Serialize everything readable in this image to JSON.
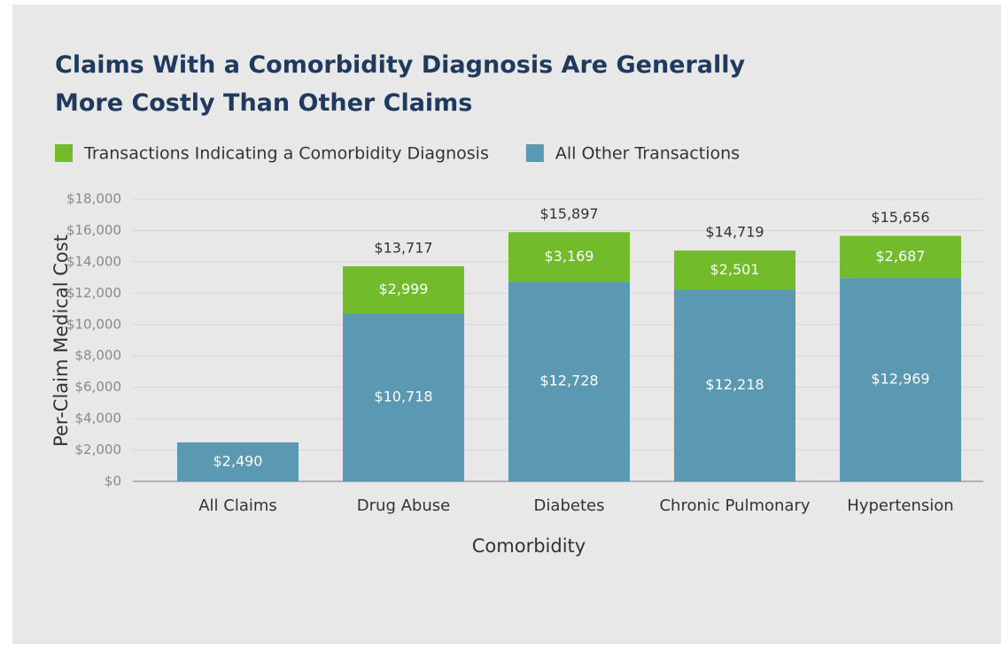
{
  "chart_data": {
    "type": "stacked_bar",
    "title": "Claims With a Comorbidity Diagnosis Are Generally More Costly Than Other Claims",
    "x_label": "Comorbidity",
    "y_label": "Per-Claim Medical Cost",
    "categories": [
      "All Claims",
      "Drug Abuse",
      "Diabetes",
      "Chronic Pulmonary",
      "Hypertension"
    ],
    "series": [
      {
        "name": "Transactions Indicating a Comorbidity Diagnosis",
        "color": "#72bb2b",
        "values": [
          null,
          2999,
          3169,
          2501,
          2687
        ],
        "value_labels": [
          null,
          "$2,999",
          "$3,169",
          "$2,501",
          "$2,687"
        ]
      },
      {
        "name": "All Other Transactions",
        "color": "#5b98b1",
        "values": [
          2490,
          10718,
          12728,
          12218,
          12969
        ],
        "value_labels": [
          "$2,490",
          "$10,718",
          "$12,728",
          "$12,218",
          "$12,969"
        ]
      }
    ],
    "totals": [
      null,
      13717,
      15897,
      14719,
      15656
    ],
    "total_labels": [
      null,
      "$13,717",
      "$15,897",
      "$14,719",
      "$15,656"
    ],
    "ylim": [
      0,
      18000
    ],
    "yticks": [
      {
        "value": 0,
        "label": "$0"
      },
      {
        "value": 2000,
        "label": "$2,000"
      },
      {
        "value": 4000,
        "label": "$4,000"
      },
      {
        "value": 6000,
        "label": "$6,000"
      },
      {
        "value": 8000,
        "label": "$8,000"
      },
      {
        "value": 10000,
        "label": "$10,000"
      },
      {
        "value": 12000,
        "label": "$12,000"
      },
      {
        "value": 14000,
        "label": "$14,000"
      },
      {
        "value": 16000,
        "label": "$16,000"
      },
      {
        "value": 18000,
        "label": "$18,000"
      }
    ],
    "grid": true
  }
}
